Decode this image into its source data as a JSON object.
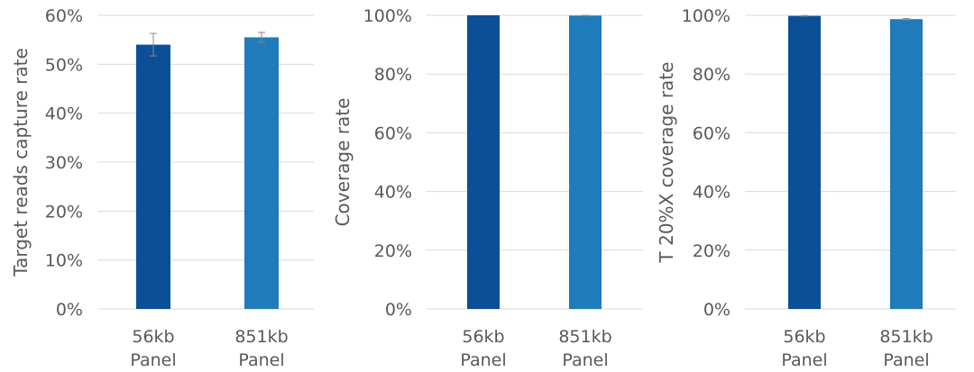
{
  "chart_data": [
    {
      "type": "bar",
      "categories": [
        [
          "56kb",
          "Panel"
        ],
        [
          "851kb",
          "Panel"
        ]
      ],
      "values": [
        0.54,
        0.555
      ],
      "errors": [
        0.023,
        0.01
      ],
      "ylabel": "Target reads capture rate",
      "ylim": [
        0,
        0.6
      ],
      "yticks": [
        0,
        0.1,
        0.2,
        0.3,
        0.4,
        0.5,
        0.6
      ],
      "ytick_labels": [
        "0%",
        "10%",
        "20%",
        "30%",
        "40%",
        "50%",
        "60%"
      ],
      "colors": [
        "#0b4f96",
        "#1f7bb9"
      ],
      "grid": true
    },
    {
      "type": "bar",
      "categories": [
        [
          "56kb",
          "Panel"
        ],
        [
          "851kb",
          "Panel"
        ]
      ],
      "values": [
        1.0,
        0.999
      ],
      "errors": [
        0.0,
        0.001
      ],
      "ylabel": "Coverage rate",
      "ylim": [
        0,
        1.0
      ],
      "yticks": [
        0,
        0.2,
        0.4,
        0.6,
        0.8,
        1.0
      ],
      "ytick_labels": [
        "0%",
        "20%",
        "40%",
        "60%",
        "80%",
        "100%"
      ],
      "colors": [
        "#0b4f96",
        "#1f7bb9"
      ],
      "grid": true
    },
    {
      "type": "bar",
      "categories": [
        [
          "56kb",
          "Panel"
        ],
        [
          "851kb",
          "Panel"
        ]
      ],
      "values": [
        0.998,
        0.987
      ],
      "errors": [
        0.001,
        0.002
      ],
      "ylabel": "T 20%X coverage rate",
      "ylim": [
        0,
        1.0
      ],
      "yticks": [
        0,
        0.2,
        0.4,
        0.6,
        0.8,
        1.0
      ],
      "ytick_labels": [
        "0%",
        "20%",
        "40%",
        "60%",
        "80%",
        "100%"
      ],
      "colors": [
        "#0b4f96",
        "#1f7bb9"
      ],
      "grid": true
    }
  ]
}
